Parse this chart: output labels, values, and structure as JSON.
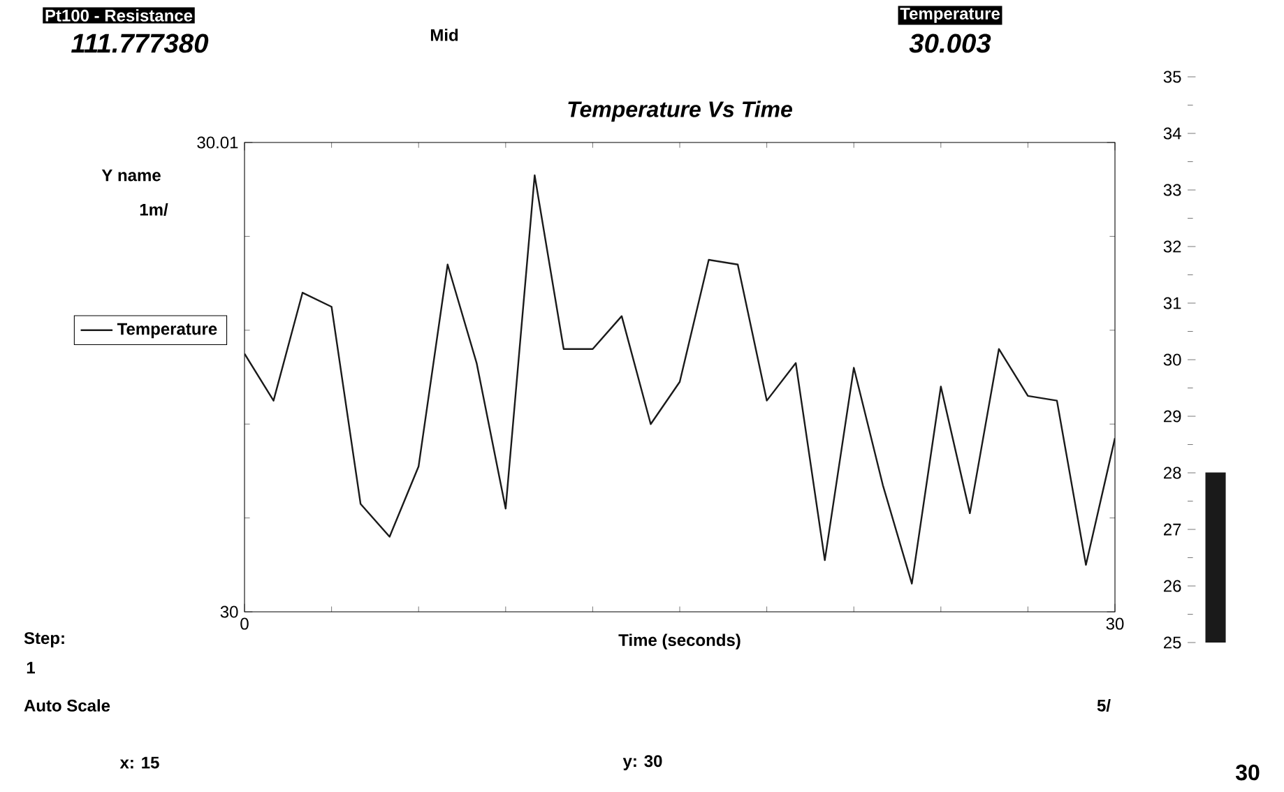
{
  "chart_data": [
    {
      "type": "line",
      "title": "Temperature Vs Time",
      "xlabel": "Time (seconds)",
      "ylabel": "Y name",
      "x": [
        0,
        1,
        2,
        3,
        4,
        5,
        6,
        7,
        8,
        9,
        10,
        11,
        12,
        13,
        14,
        15,
        16,
        17,
        18,
        19,
        20,
        21,
        22,
        23,
        24,
        25,
        26,
        27,
        28,
        29,
        30
      ],
      "series": [
        {
          "name": "Temperature",
          "color": "#1a1a1a",
          "values": [
            30.0055,
            30.0045,
            30.0068,
            30.0065,
            30.0023,
            30.0016,
            30.0031,
            30.0074,
            30.0053,
            30.0022,
            30.0093,
            30.0056,
            30.0056,
            30.0063,
            30.004,
            30.0049,
            30.0075,
            30.0074,
            30.0045,
            30.0053,
            30.0011,
            30.0052,
            30.0027,
            30.0006,
            30.0048,
            30.0021,
            30.0056,
            30.0046,
            30.0045,
            30.001,
            30.0037
          ]
        }
      ],
      "xlim": [
        0,
        30
      ],
      "ylim": [
        30,
        30.01
      ],
      "xticks": [
        0,
        30
      ],
      "yticks": [
        30,
        30.01
      ],
      "legend": "left",
      "marker": "none",
      "annotations": [
        "Pt100 - Resistance",
        "111.777380",
        "Mid",
        "Temperature",
        "30.003",
        "1m/",
        "Step:",
        "1",
        "Auto Scale",
        "x: 15",
        "y: 30",
        "5/"
      ]
    },
    {
      "type": "bar",
      "categories": [
        null
      ],
      "values": [
        28
      ],
      "color": "#1a1a1a",
      "ylim": [
        25,
        35
      ],
      "yticks": [
        25,
        26,
        27,
        28,
        29,
        30,
        31,
        32,
        33,
        34,
        35
      ],
      "tick_labels": "y",
      "annotations": [
        "30"
      ]
    }
  ]
}
